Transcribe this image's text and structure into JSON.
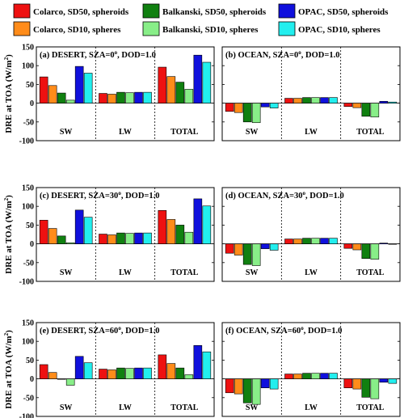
{
  "legend": [
    {
      "name": "Colarco, SD50, spheroids",
      "color": "#ee1111"
    },
    {
      "name": "Balkanski, SD50, spheroids",
      "color": "#108010"
    },
    {
      "name": "OPAC, SD50, spheroids",
      "color": "#1010dd"
    },
    {
      "name": "Colarco, SD10, spheres",
      "color": "#ff8c1a"
    },
    {
      "name": "Balkanski, SD10, spheres",
      "color": "#88ee88"
    },
    {
      "name": "OPAC, SD10, spheres",
      "color": "#22eeee"
    }
  ],
  "series_order": [
    "Colarco, SD50, spheroids",
    "Colarco, SD10, spheres",
    "Balkanski, SD50, spheroids",
    "Balkanski, SD10, spheres",
    "OPAC, SD50, spheroids",
    "OPAC, SD10, spheres"
  ],
  "series_colors": [
    "#ee1111",
    "#ff8c1a",
    "#108010",
    "#88ee88",
    "#1010dd",
    "#22eeee"
  ],
  "chart_data": [
    {
      "type": "bar",
      "title": "(a) DESERT, SZA=0",
      "title_sup": "o",
      "title_suffix": ", DOD=1.0",
      "ylabel": "DRE at TOA (W/m",
      "ylabel_sup": "2",
      "ylabel_suffix": ")",
      "ylim": [
        -100,
        150
      ],
      "yticks": [
        "-100",
        "-50",
        "0",
        "50",
        "100",
        "150"
      ],
      "categories": [
        "SW",
        "LW",
        "TOTAL"
      ],
      "values": [
        [
          70,
          47,
          27,
          8,
          98,
          80
        ],
        [
          26,
          24,
          29,
          28,
          29,
          29
        ],
        [
          96,
          71,
          56,
          37,
          128,
          109
        ]
      ]
    },
    {
      "type": "bar",
      "title": "(b) OCEAN, SZA=0",
      "title_sup": "o",
      "title_suffix": ", DOD=1.0",
      "ylim": [
        -100,
        150
      ],
      "categories": [
        "SW",
        "LW",
        "TOTAL"
      ],
      "values": [
        [
          -22,
          -25,
          -50,
          -52,
          -10,
          -13
        ],
        [
          13,
          13,
          15,
          15,
          15,
          15
        ],
        [
          -9,
          -12,
          -35,
          -37,
          5,
          3
        ]
      ]
    },
    {
      "type": "bar",
      "title": "(c) DESERT, SZA=30",
      "title_sup": "o",
      "title_suffix": ", DOD=1.0",
      "ylabel": "DRE at TOA (W/m",
      "ylabel_sup": "2",
      "ylabel_suffix": ")",
      "ylim": [
        -100,
        150
      ],
      "yticks": [
        "-100",
        "-50",
        "0",
        "50",
        "100",
        "150"
      ],
      "categories": [
        "SW",
        "LW",
        "TOTAL"
      ],
      "values": [
        [
          63,
          41,
          21,
          3,
          90,
          71
        ],
        [
          26,
          24,
          29,
          28,
          29,
          29
        ],
        [
          89,
          65,
          50,
          31,
          120,
          101
        ]
      ]
    },
    {
      "type": "bar",
      "title": "(d) OCEAN, SZA=30",
      "title_sup": "o",
      "title_suffix": ", DOD=1.0",
      "ylim": [
        -100,
        150
      ],
      "categories": [
        "SW",
        "LW",
        "TOTAL"
      ],
      "values": [
        [
          -25,
          -30,
          -55,
          -58,
          -13,
          -17
        ],
        [
          13,
          13,
          15,
          15,
          15,
          15
        ],
        [
          -12,
          -16,
          -39,
          -41,
          2,
          -1
        ]
      ]
    },
    {
      "type": "bar",
      "title": "(e) DESERT, SZA=60",
      "title_sup": "o",
      "title_suffix": ", DOD=1.0",
      "ylabel": "DRE at TOA (W/m",
      "ylabel_sup": "2",
      "ylabel_suffix": ")",
      "ylim": [
        -100,
        150
      ],
      "yticks": [
        "-100",
        "-50",
        "0",
        "50",
        "100",
        "150"
      ],
      "categories": [
        "SW",
        "LW",
        "TOTAL"
      ],
      "values": [
        [
          38,
          17,
          0,
          -17,
          60,
          43
        ],
        [
          26,
          24,
          29,
          28,
          29,
          29
        ],
        [
          64,
          41,
          29,
          11,
          89,
          72
        ]
      ]
    },
    {
      "type": "bar",
      "title": "(f) OCEAN, SZA=60",
      "title_sup": "o",
      "title_suffix": ", DOD=1.0",
      "ylim": [
        -100,
        150
      ],
      "categories": [
        "SW",
        "LW",
        "TOTAL"
      ],
      "values": [
        [
          -37,
          -40,
          -64,
          -68,
          -24,
          -27
        ],
        [
          13,
          13,
          15,
          15,
          15,
          15
        ],
        [
          -24,
          -27,
          -49,
          -53,
          -9,
          -12
        ]
      ]
    }
  ]
}
